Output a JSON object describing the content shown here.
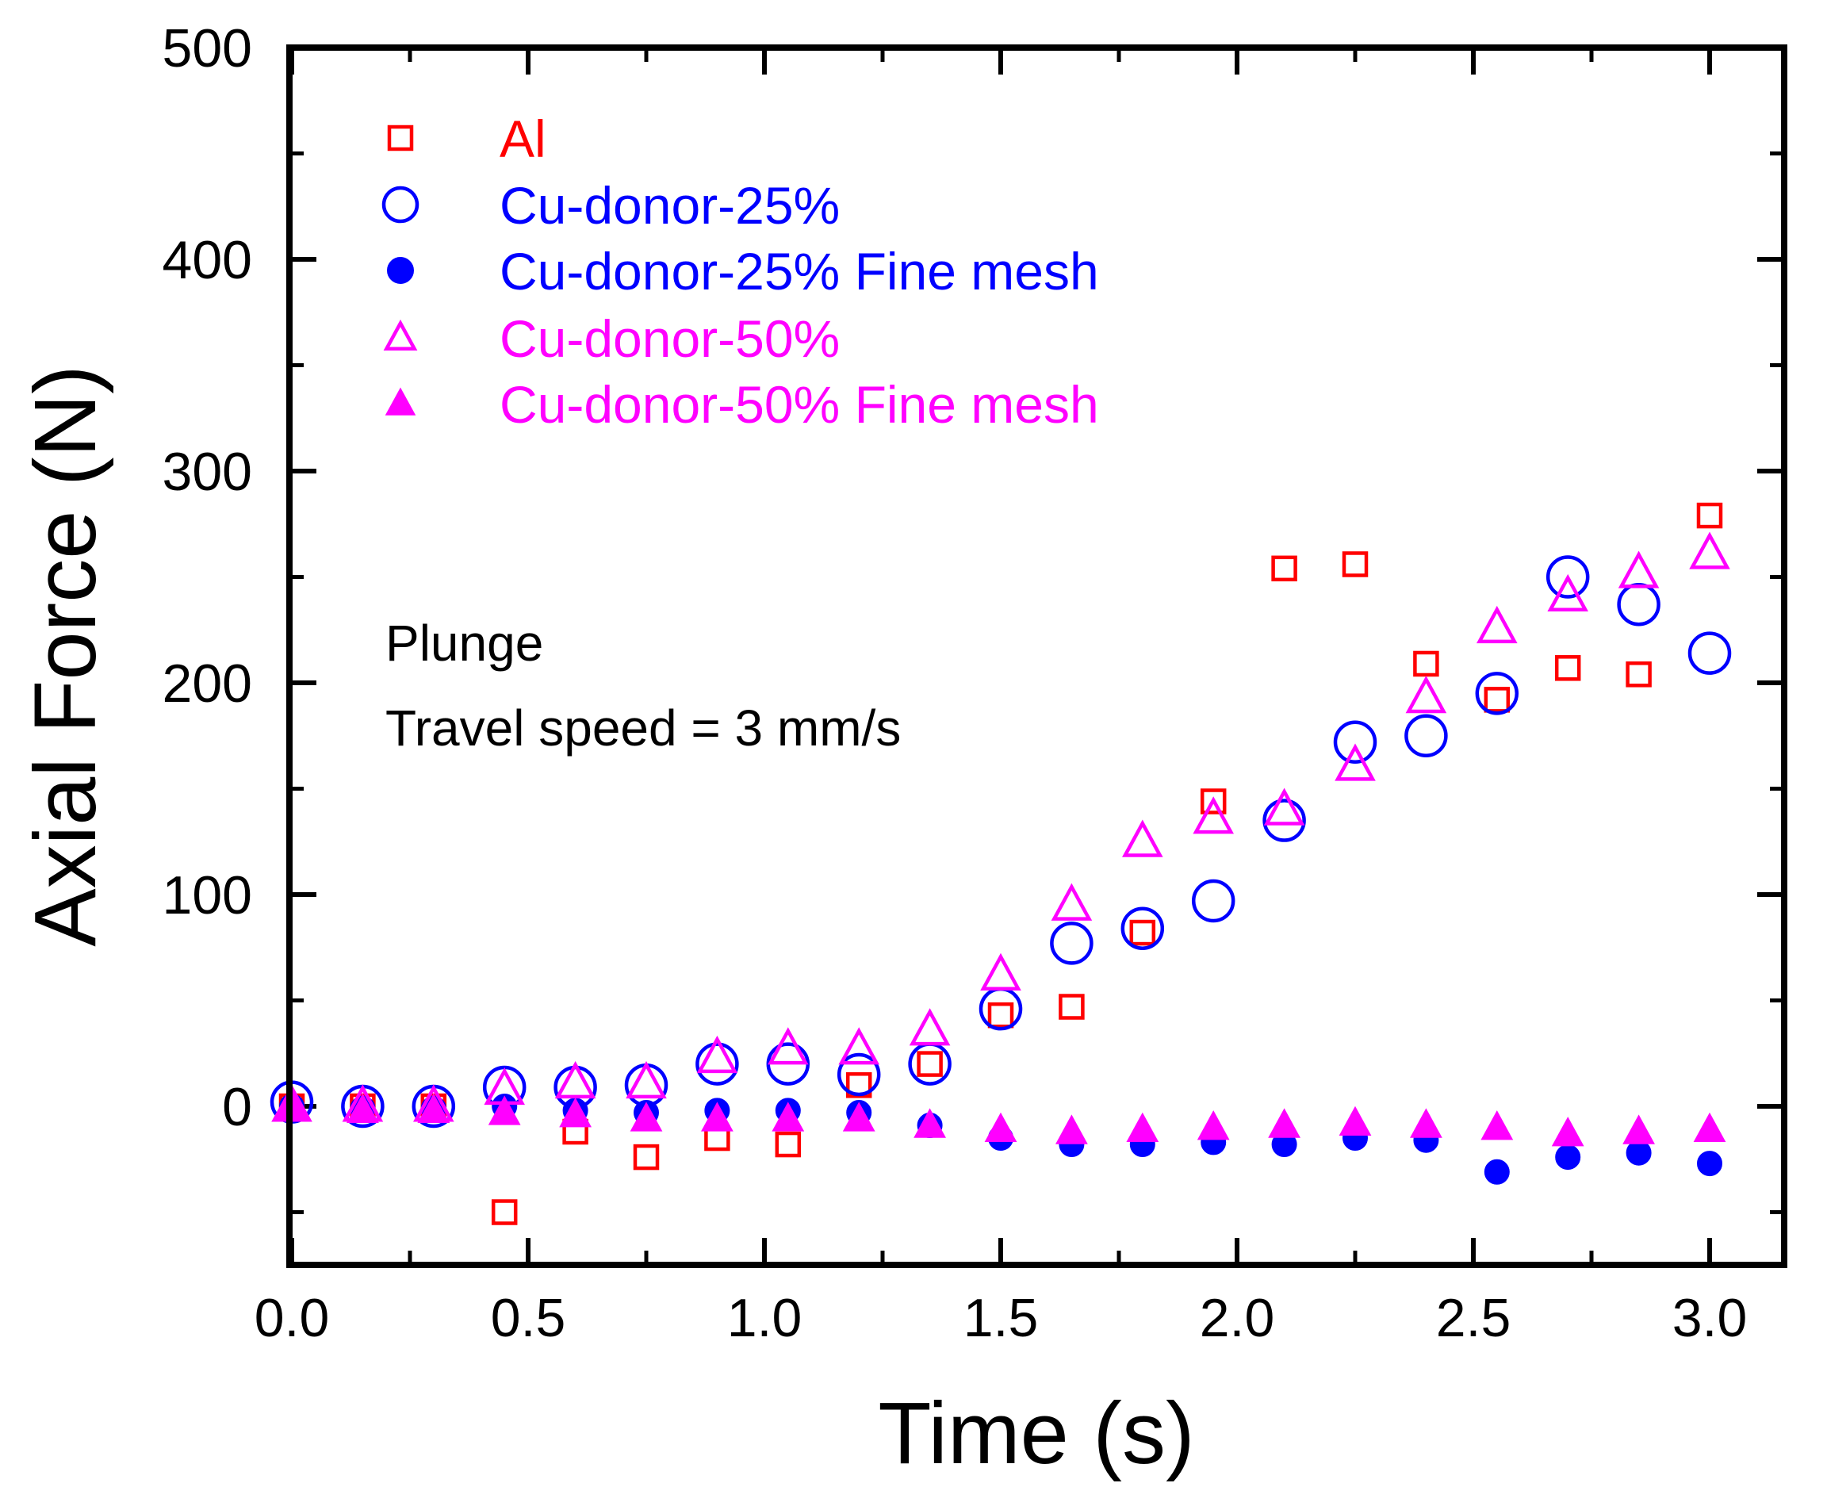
{
  "chart_data": {
    "type": "scatter",
    "title": "",
    "xlabel": "Time (s)",
    "ylabel": "Axial Force (N)",
    "xlim": [
      0.0,
      3.15
    ],
    "ylim": [
      -75,
      500
    ],
    "xticks": [
      0.0,
      0.5,
      1.0,
      1.5,
      2.0,
      2.5,
      3.0
    ],
    "xtick_labels": [
      "0.0",
      "0.5",
      "1.0",
      "1.5",
      "2.0",
      "2.5",
      "3.0"
    ],
    "yticks": [
      0,
      100,
      200,
      300,
      400,
      500
    ],
    "ytick_labels": [
      "0",
      "100",
      "200",
      "300",
      "400",
      "500"
    ],
    "grid": false,
    "legend_position": "top-left",
    "annotations": [
      "Plunge",
      "Travel speed = 3 mm/s"
    ],
    "series": [
      {
        "name": "Al",
        "marker": "square-open",
        "color": "#ff0000",
        "x": [
          0.0,
          0.15,
          0.3,
          0.45,
          0.6,
          0.75,
          0.9,
          1.05,
          1.2,
          1.35,
          1.5,
          1.65,
          1.8,
          1.95,
          2.1,
          2.25,
          2.4,
          2.55,
          2.7,
          2.85,
          3.0
        ],
        "y": [
          0,
          0,
          0,
          -50,
          -12,
          -24,
          -15,
          -18,
          10,
          20,
          43,
          47,
          82,
          144,
          254,
          256,
          209,
          192,
          207,
          204,
          279
        ]
      },
      {
        "name": "Cu-donor-25%",
        "marker": "circle-open",
        "color": "#0000ff",
        "x": [
          0.0,
          0.15,
          0.3,
          0.45,
          0.6,
          0.75,
          0.9,
          1.05,
          1.2,
          1.35,
          1.5,
          1.65,
          1.8,
          1.95,
          2.1,
          2.25,
          2.4,
          2.55,
          2.7,
          2.85,
          3.0
        ],
        "y": [
          2,
          0,
          0,
          9,
          9,
          10,
          20,
          20,
          15,
          20,
          46,
          77,
          84,
          97,
          135,
          172,
          175,
          195,
          250,
          237,
          214
        ]
      },
      {
        "name": "Cu-donor-25% Fine mesh",
        "marker": "circle-filled",
        "color": "#0000ff",
        "x": [
          0.0,
          0.15,
          0.3,
          0.45,
          0.6,
          0.75,
          0.9,
          1.05,
          1.2,
          1.35,
          1.5,
          1.65,
          1.8,
          1.95,
          2.1,
          2.25,
          2.4,
          2.55,
          2.7,
          2.85,
          3.0
        ],
        "y": [
          0,
          -1,
          -1,
          0,
          -2,
          -3,
          -2,
          -2,
          -3,
          -9,
          -15,
          -18,
          -18,
          -17,
          -18,
          -15,
          -16,
          -31,
          -24,
          -22,
          -27
        ]
      },
      {
        "name": "Cu-donor-50%",
        "marker": "triangle-open",
        "color": "#ff00ff",
        "x": [
          0.0,
          0.15,
          0.3,
          0.45,
          0.6,
          0.75,
          0.9,
          1.05,
          1.2,
          1.35,
          1.5,
          1.65,
          1.8,
          1.95,
          2.1,
          2.25,
          2.4,
          2.55,
          2.7,
          2.85,
          3.0
        ],
        "y": [
          0,
          0,
          0,
          8,
          11,
          11,
          23,
          27,
          27,
          36,
          62,
          95,
          125,
          136,
          140,
          161,
          193,
          226,
          241,
          252,
          261
        ]
      },
      {
        "name": "Cu-donor-50% Fine mesh",
        "marker": "triangle-filled",
        "color": "#ff00ff",
        "x": [
          0.0,
          0.15,
          0.3,
          0.45,
          0.6,
          0.75,
          0.9,
          1.05,
          1.2,
          1.35,
          1.5,
          1.65,
          1.8,
          1.95,
          2.1,
          2.25,
          2.4,
          2.55,
          2.7,
          2.85,
          3.0
        ],
        "y": [
          0,
          -2,
          -2,
          -3,
          -4,
          -6,
          -6,
          -6,
          -6,
          -9,
          -11,
          -12,
          -11,
          -10,
          -9,
          -8,
          -9,
          -10,
          -13,
          -12,
          -11
        ]
      }
    ]
  }
}
